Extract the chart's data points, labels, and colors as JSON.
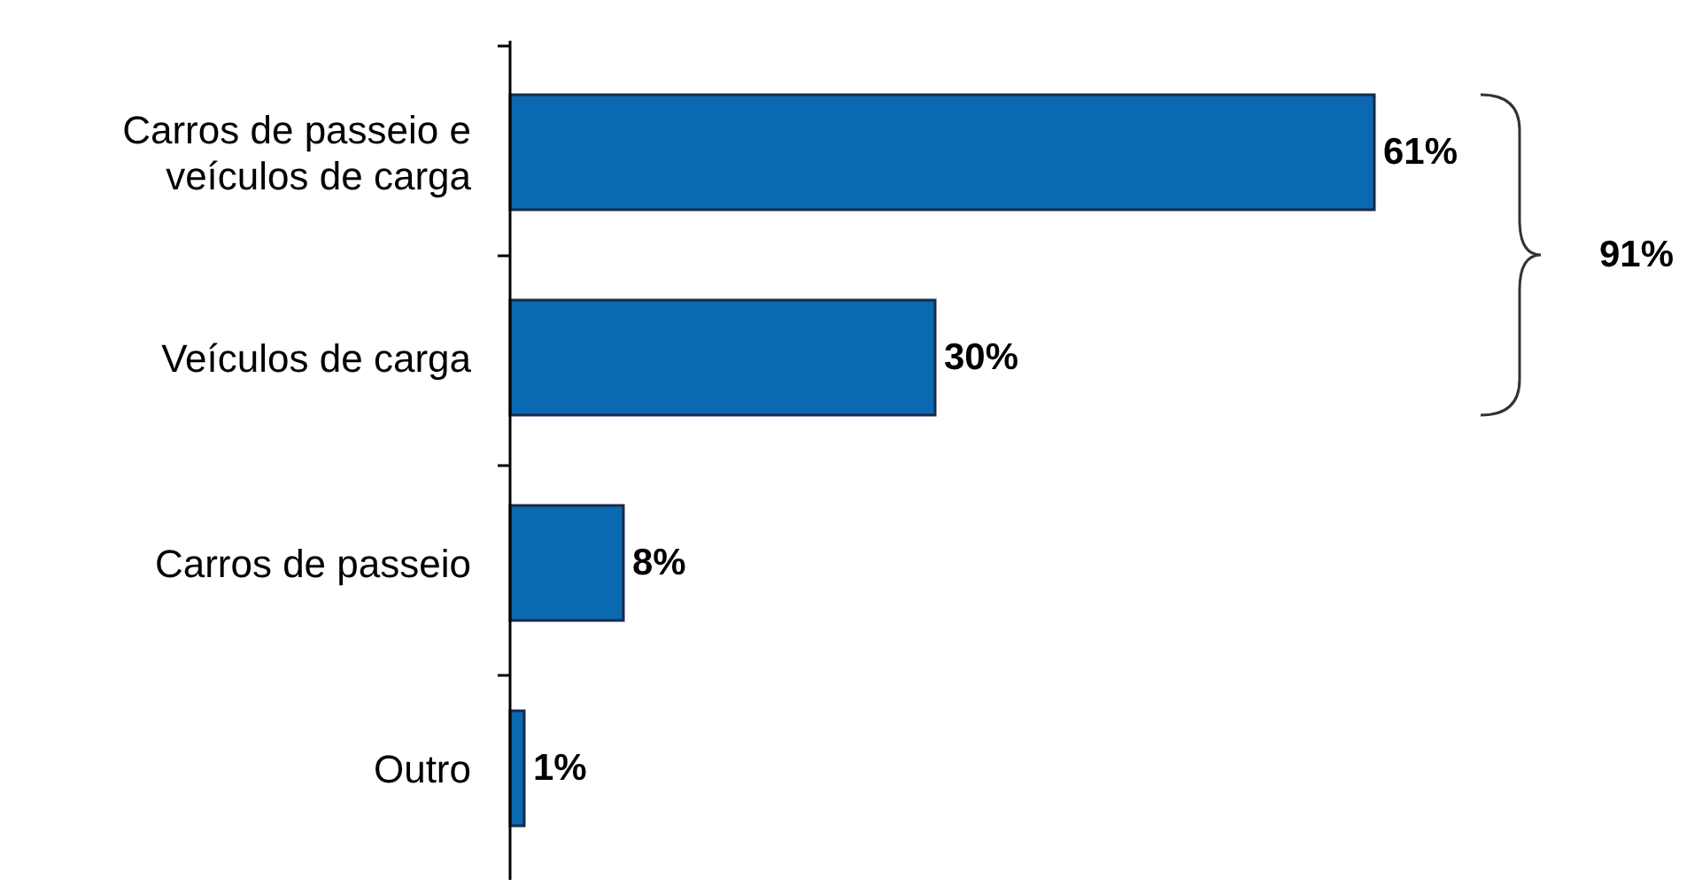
{
  "chart_data": {
    "type": "bar",
    "orientation": "horizontal",
    "categories": [
      "Carros de passeio e veículos de carga",
      "Veículos de carga",
      "Carros de passeio",
      "Outro"
    ],
    "values": [
      61,
      30,
      8,
      1
    ],
    "color": "#0a69b0",
    "data_labels": true,
    "value_labels": [
      "61%",
      "30%",
      "8%",
      "1%"
    ],
    "annotations": [
      "91%"
    ]
  }
}
